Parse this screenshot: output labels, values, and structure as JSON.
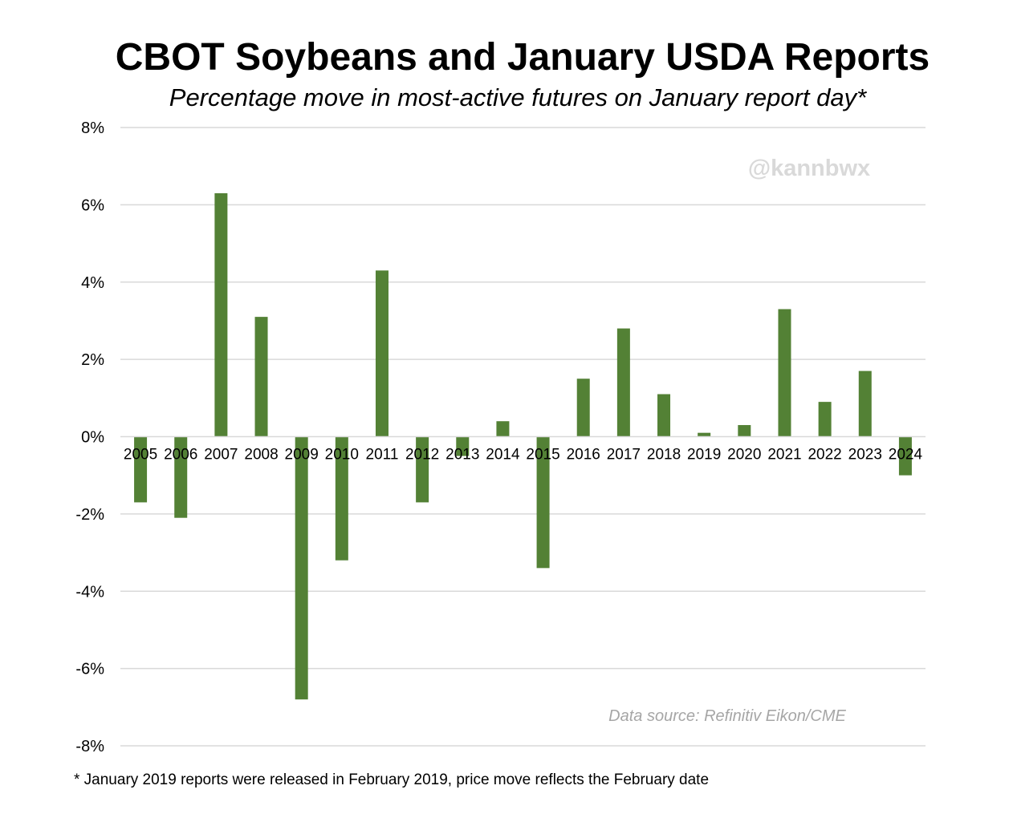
{
  "chart_data": {
    "type": "bar",
    "title": "CBOT Soybeans and January USDA Reports",
    "subtitle": "Percentage move in most-active futures on January report day*",
    "xlabel": "",
    "ylabel": "",
    "categories": [
      "2005",
      "2006",
      "2007",
      "2008",
      "2009",
      "2010",
      "2011",
      "2012",
      "2013",
      "2014",
      "2015",
      "2016",
      "2017",
      "2018",
      "2019",
      "2020",
      "2021",
      "2022",
      "2023",
      "2024"
    ],
    "series": [
      {
        "name": "Percentage move",
        "values": [
          -1.7,
          -2.1,
          6.3,
          3.1,
          -6.8,
          -3.2,
          4.3,
          -1.7,
          -0.5,
          0.4,
          -3.4,
          1.5,
          2.8,
          1.1,
          0.1,
          0.3,
          3.3,
          0.9,
          1.7,
          -1.0
        ]
      }
    ],
    "ylim": [
      -8,
      8
    ],
    "yticks": [
      8,
      6,
      4,
      2,
      0,
      -2,
      -4,
      -6,
      -8
    ],
    "ytick_labels": [
      "8%",
      "6%",
      "4%",
      "2%",
      "0%",
      "-2%",
      "-4%",
      "-6%",
      "-8%"
    ],
    "grid": true,
    "bar_color": "#538135",
    "watermark": "@kannbwx",
    "source": "Data source: Refinitiv Eikon/CME",
    "footnote": "* January 2019 reports were released in February 2019, price move reflects the February date"
  }
}
